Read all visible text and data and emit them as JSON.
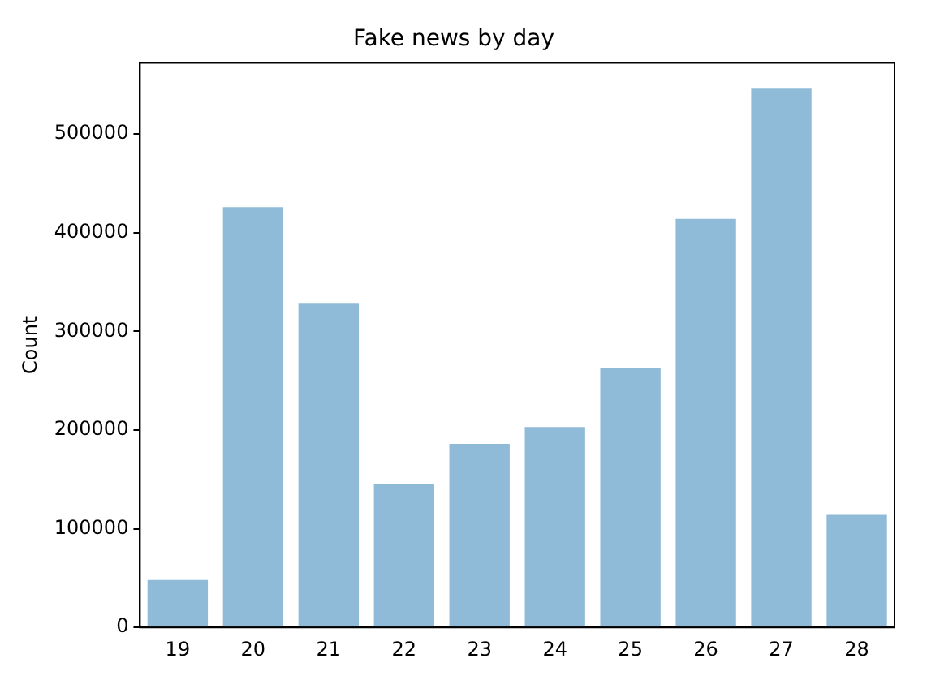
{
  "chart_data": {
    "type": "bar",
    "title": "Fake news by day",
    "ylabel": "Count",
    "categories": [
      "19",
      "20",
      "21",
      "22",
      "23",
      "24",
      "25",
      "26",
      "27",
      "28"
    ],
    "values": [
      48000,
      426000,
      328000,
      145000,
      186000,
      203000,
      263000,
      414000,
      546000,
      114000
    ],
    "color": "#8fbbd9",
    "ylim": [
      0,
      572000
    ],
    "yticks": [
      0,
      100000,
      200000,
      300000,
      400000,
      500000
    ],
    "grid": false,
    "legend": false
  }
}
